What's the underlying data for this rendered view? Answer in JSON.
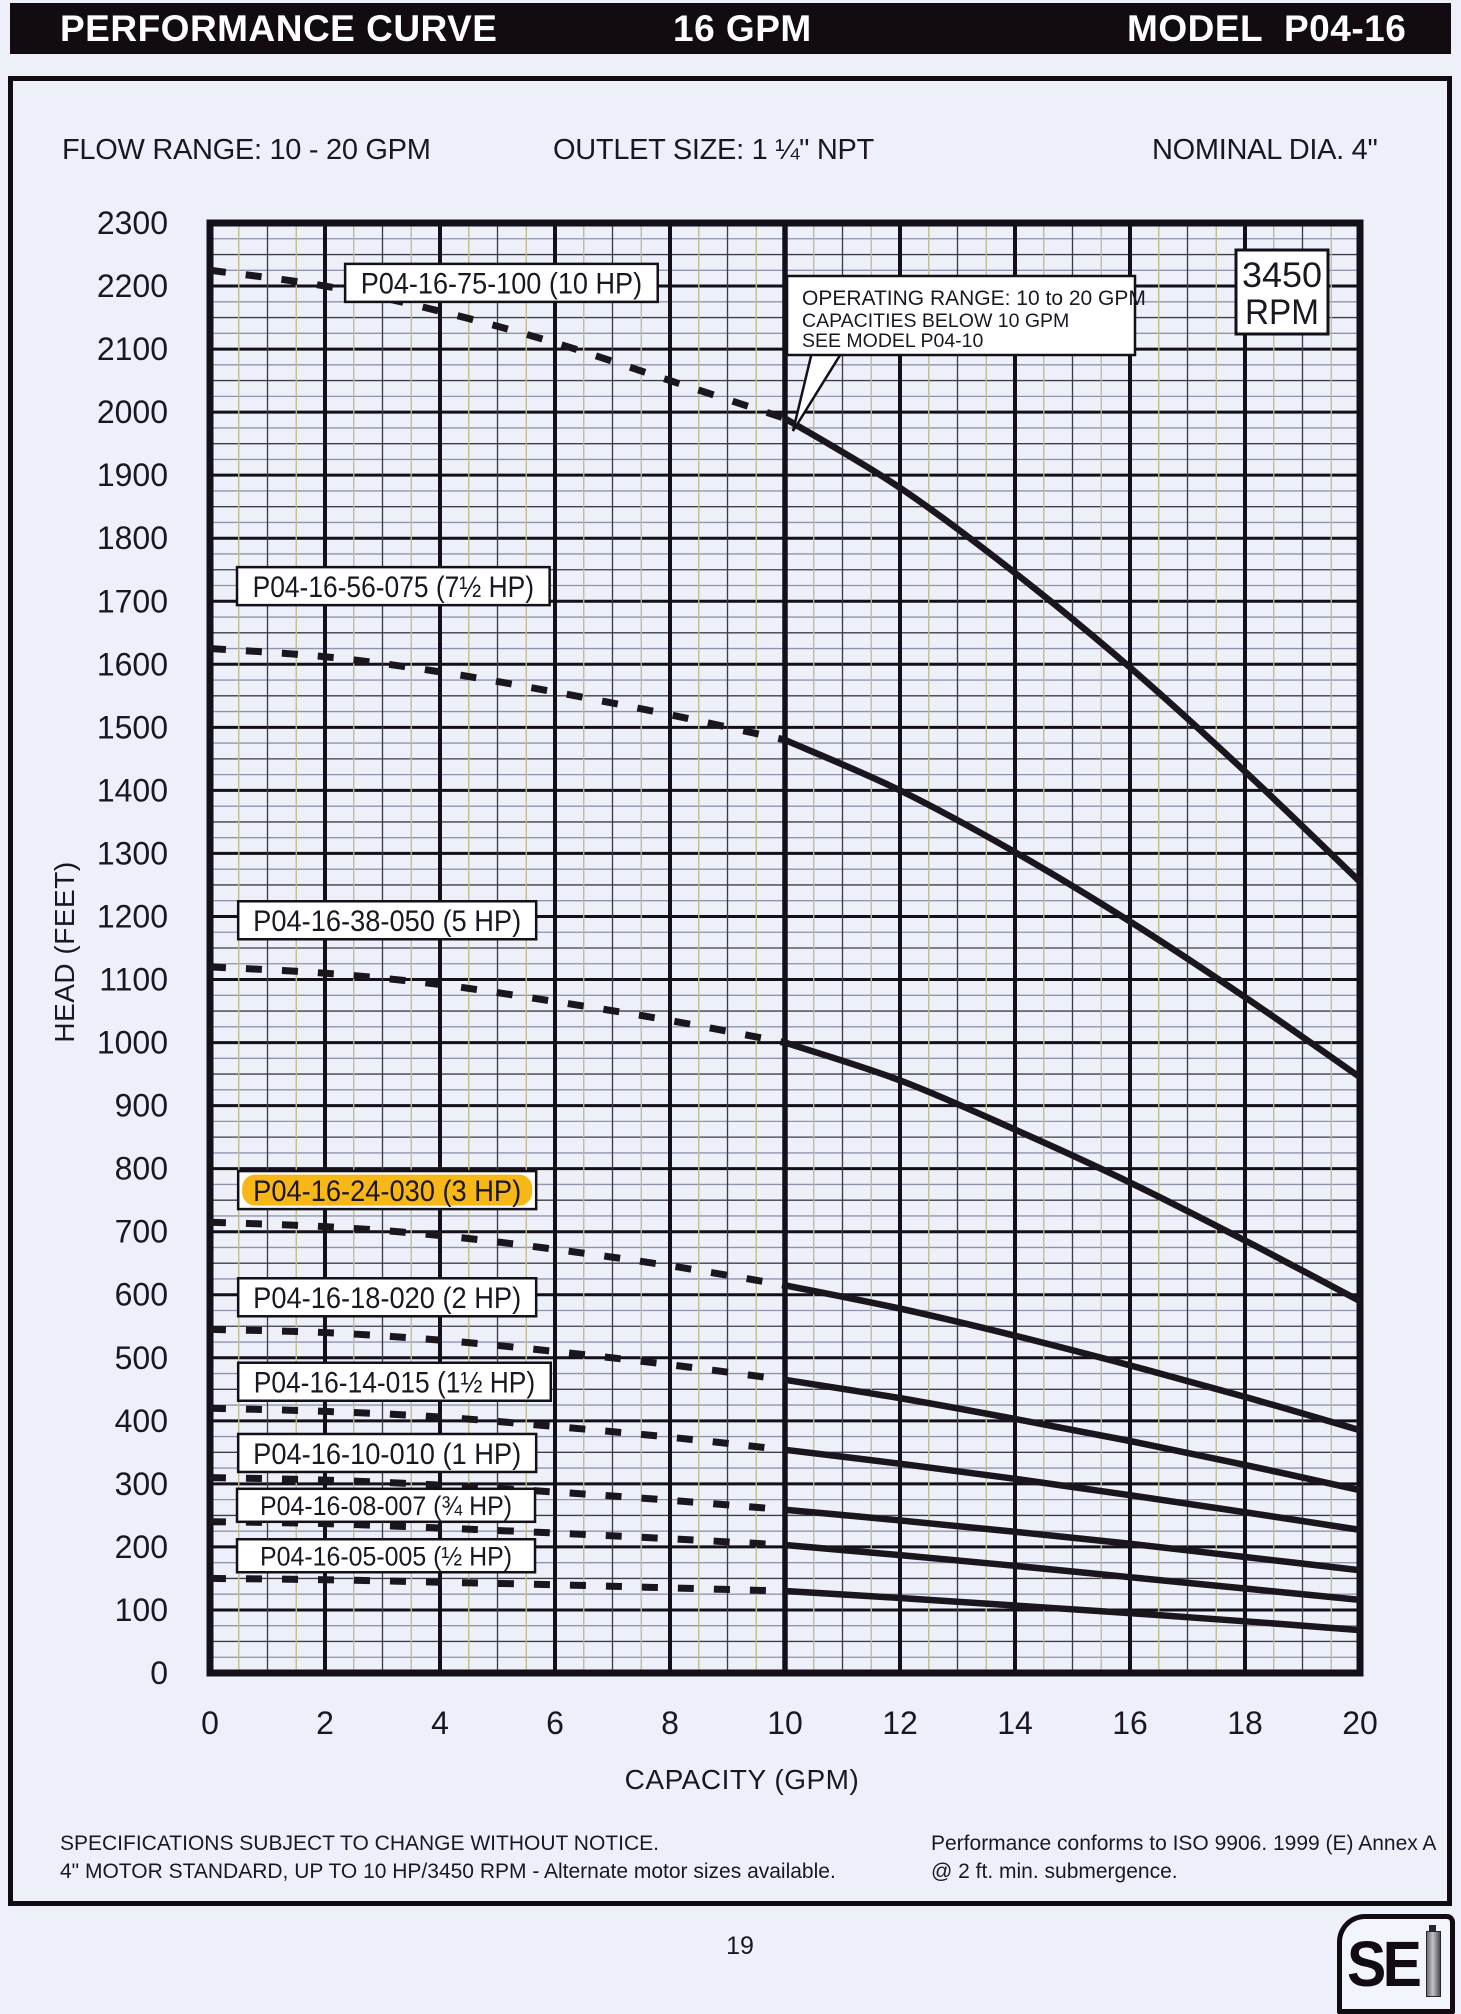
{
  "header": {
    "title": "PERFORMANCE CURVE",
    "flow": "16 GPM",
    "model": "MODEL  P04-16"
  },
  "subheader": {
    "flow_range": "FLOW RANGE: 10 - 20 GPM",
    "outlet_size": "OUTLET SIZE: 1 ¼\" NPT",
    "nominal_dia": "NOMINAL DIA. 4\""
  },
  "chart_data": {
    "type": "line",
    "title": "",
    "xlabel": "CAPACITY (GPM)",
    "ylabel": "HEAD (FEET)",
    "xlim": [
      0,
      20
    ],
    "ylim": [
      0,
      2300
    ],
    "x_tick_step": 2,
    "y_tick_step": 100,
    "x_minor_step": 0.5,
    "y_minor_step": 25,
    "grid": "on",
    "rpm_badge": [
      "3450",
      "RPM"
    ],
    "callout_lines": [
      "OPERATING RANGE: 10 to 20 GPM",
      "CAPACITIES BELOW 10 GPM",
      "SEE MODEL  P04-10"
    ],
    "dashed_below_gpm": 10,
    "x": [
      0,
      2,
      4,
      6,
      8,
      10,
      12,
      14,
      16,
      18,
      20
    ],
    "series": [
      {
        "name": "P04-16-75-100 (10 HP)",
        "hp": "10 HP",
        "highlight": false,
        "small": false,
        "label_at": {
          "gpm": 2.35,
          "ft": 2205
        },
        "y": [
          2225,
          2200,
          2160,
          2110,
          2050,
          1990,
          1880,
          1745,
          1595,
          1430,
          1255
        ]
      },
      {
        "name": "P04-16-56-075 (7½ HP)",
        "hp": "7½ HP",
        "highlight": false,
        "small": false,
        "label_at": {
          "gpm": 0.47,
          "ft": 1724
        },
        "y": [
          1625,
          1612,
          1588,
          1556,
          1520,
          1480,
          1400,
          1302,
          1192,
          1072,
          945
        ]
      },
      {
        "name": "P04-16-38-050 (5 HP)",
        "hp": "5 HP",
        "highlight": false,
        "small": false,
        "label_at": {
          "gpm": 0.49,
          "ft": 1194
        },
        "y": [
          1120,
          1110,
          1092,
          1065,
          1035,
          1000,
          940,
          862,
          778,
          686,
          590
        ]
      },
      {
        "name": "P04-16-24-030 (3 HP)",
        "hp": "3 HP",
        "highlight": true,
        "small": false,
        "label_at": {
          "gpm": 0.49,
          "ft": 766
        },
        "y": [
          715,
          708,
          694,
          672,
          646,
          615,
          578,
          535,
          488,
          438,
          385
        ]
      },
      {
        "name": "P04-16-18-020 (2 HP)",
        "hp": "2 HP",
        "highlight": false,
        "small": false,
        "label_at": {
          "gpm": 0.49,
          "ft": 596
        },
        "y": [
          545,
          540,
          528,
          510,
          489,
          465,
          436,
          403,
          368,
          330,
          290
        ]
      },
      {
        "name": "P04-16-14-015 (1½ HP)",
        "hp": "1½ HP",
        "highlight": false,
        "small": false,
        "label_at": {
          "gpm": 0.49,
          "ft": 462
        },
        "y": [
          420,
          415,
          406,
          391,
          374,
          354,
          332,
          308,
          282,
          255,
          227
        ]
      },
      {
        "name": "P04-16-10-010 (1 HP)",
        "hp": "1 HP",
        "highlight": false,
        "small": false,
        "label_at": {
          "gpm": 0.49,
          "ft": 349
        },
        "y": [
          310,
          306,
          298,
          287,
          274,
          259,
          242,
          224,
          205,
          184,
          163
        ]
      },
      {
        "name": "P04-16-08-007 (¾ HP)",
        "hp": "¾ HP",
        "highlight": false,
        "small": true,
        "label_at": {
          "gpm": 0.47,
          "ft": 266
        },
        "y": [
          240,
          237,
          230,
          222,
          213,
          203,
          187,
          170,
          152,
          134,
          116
        ]
      },
      {
        "name": "P04-16-05-005 (½ HP)",
        "hp": "½ HP",
        "highlight": false,
        "small": true,
        "label_at": {
          "gpm": 0.47,
          "ft": 186
        },
        "y": [
          150,
          148,
          144,
          140,
          135,
          130,
          119,
          107,
          95,
          82,
          68
        ]
      }
    ],
    "colors": {
      "curve": "#1b161e",
      "grid_major": "#14101a",
      "grid_mid": "#3d3d49",
      "grid_minor_h": "#9093ad",
      "grid_minor_v": "#bdbd8d",
      "highlight_yellow": "#F7B716",
      "label_box_bg": "#ffffff"
    }
  },
  "footnotes": {
    "left_line1": "SPECIFICATIONS SUBJECT TO CHANGE WITHOUT NOTICE.",
    "left_line2": "4\" MOTOR STANDARD, UP TO 10 HP/3450 RPM - Alternate motor sizes available.",
    "right_line1": "Performance conforms to ISO 9906. 1999 (E) Annex A",
    "right_line2": "@ 2 ft. min. submergence."
  },
  "page": {
    "number": "19",
    "logo_text": "SE"
  }
}
